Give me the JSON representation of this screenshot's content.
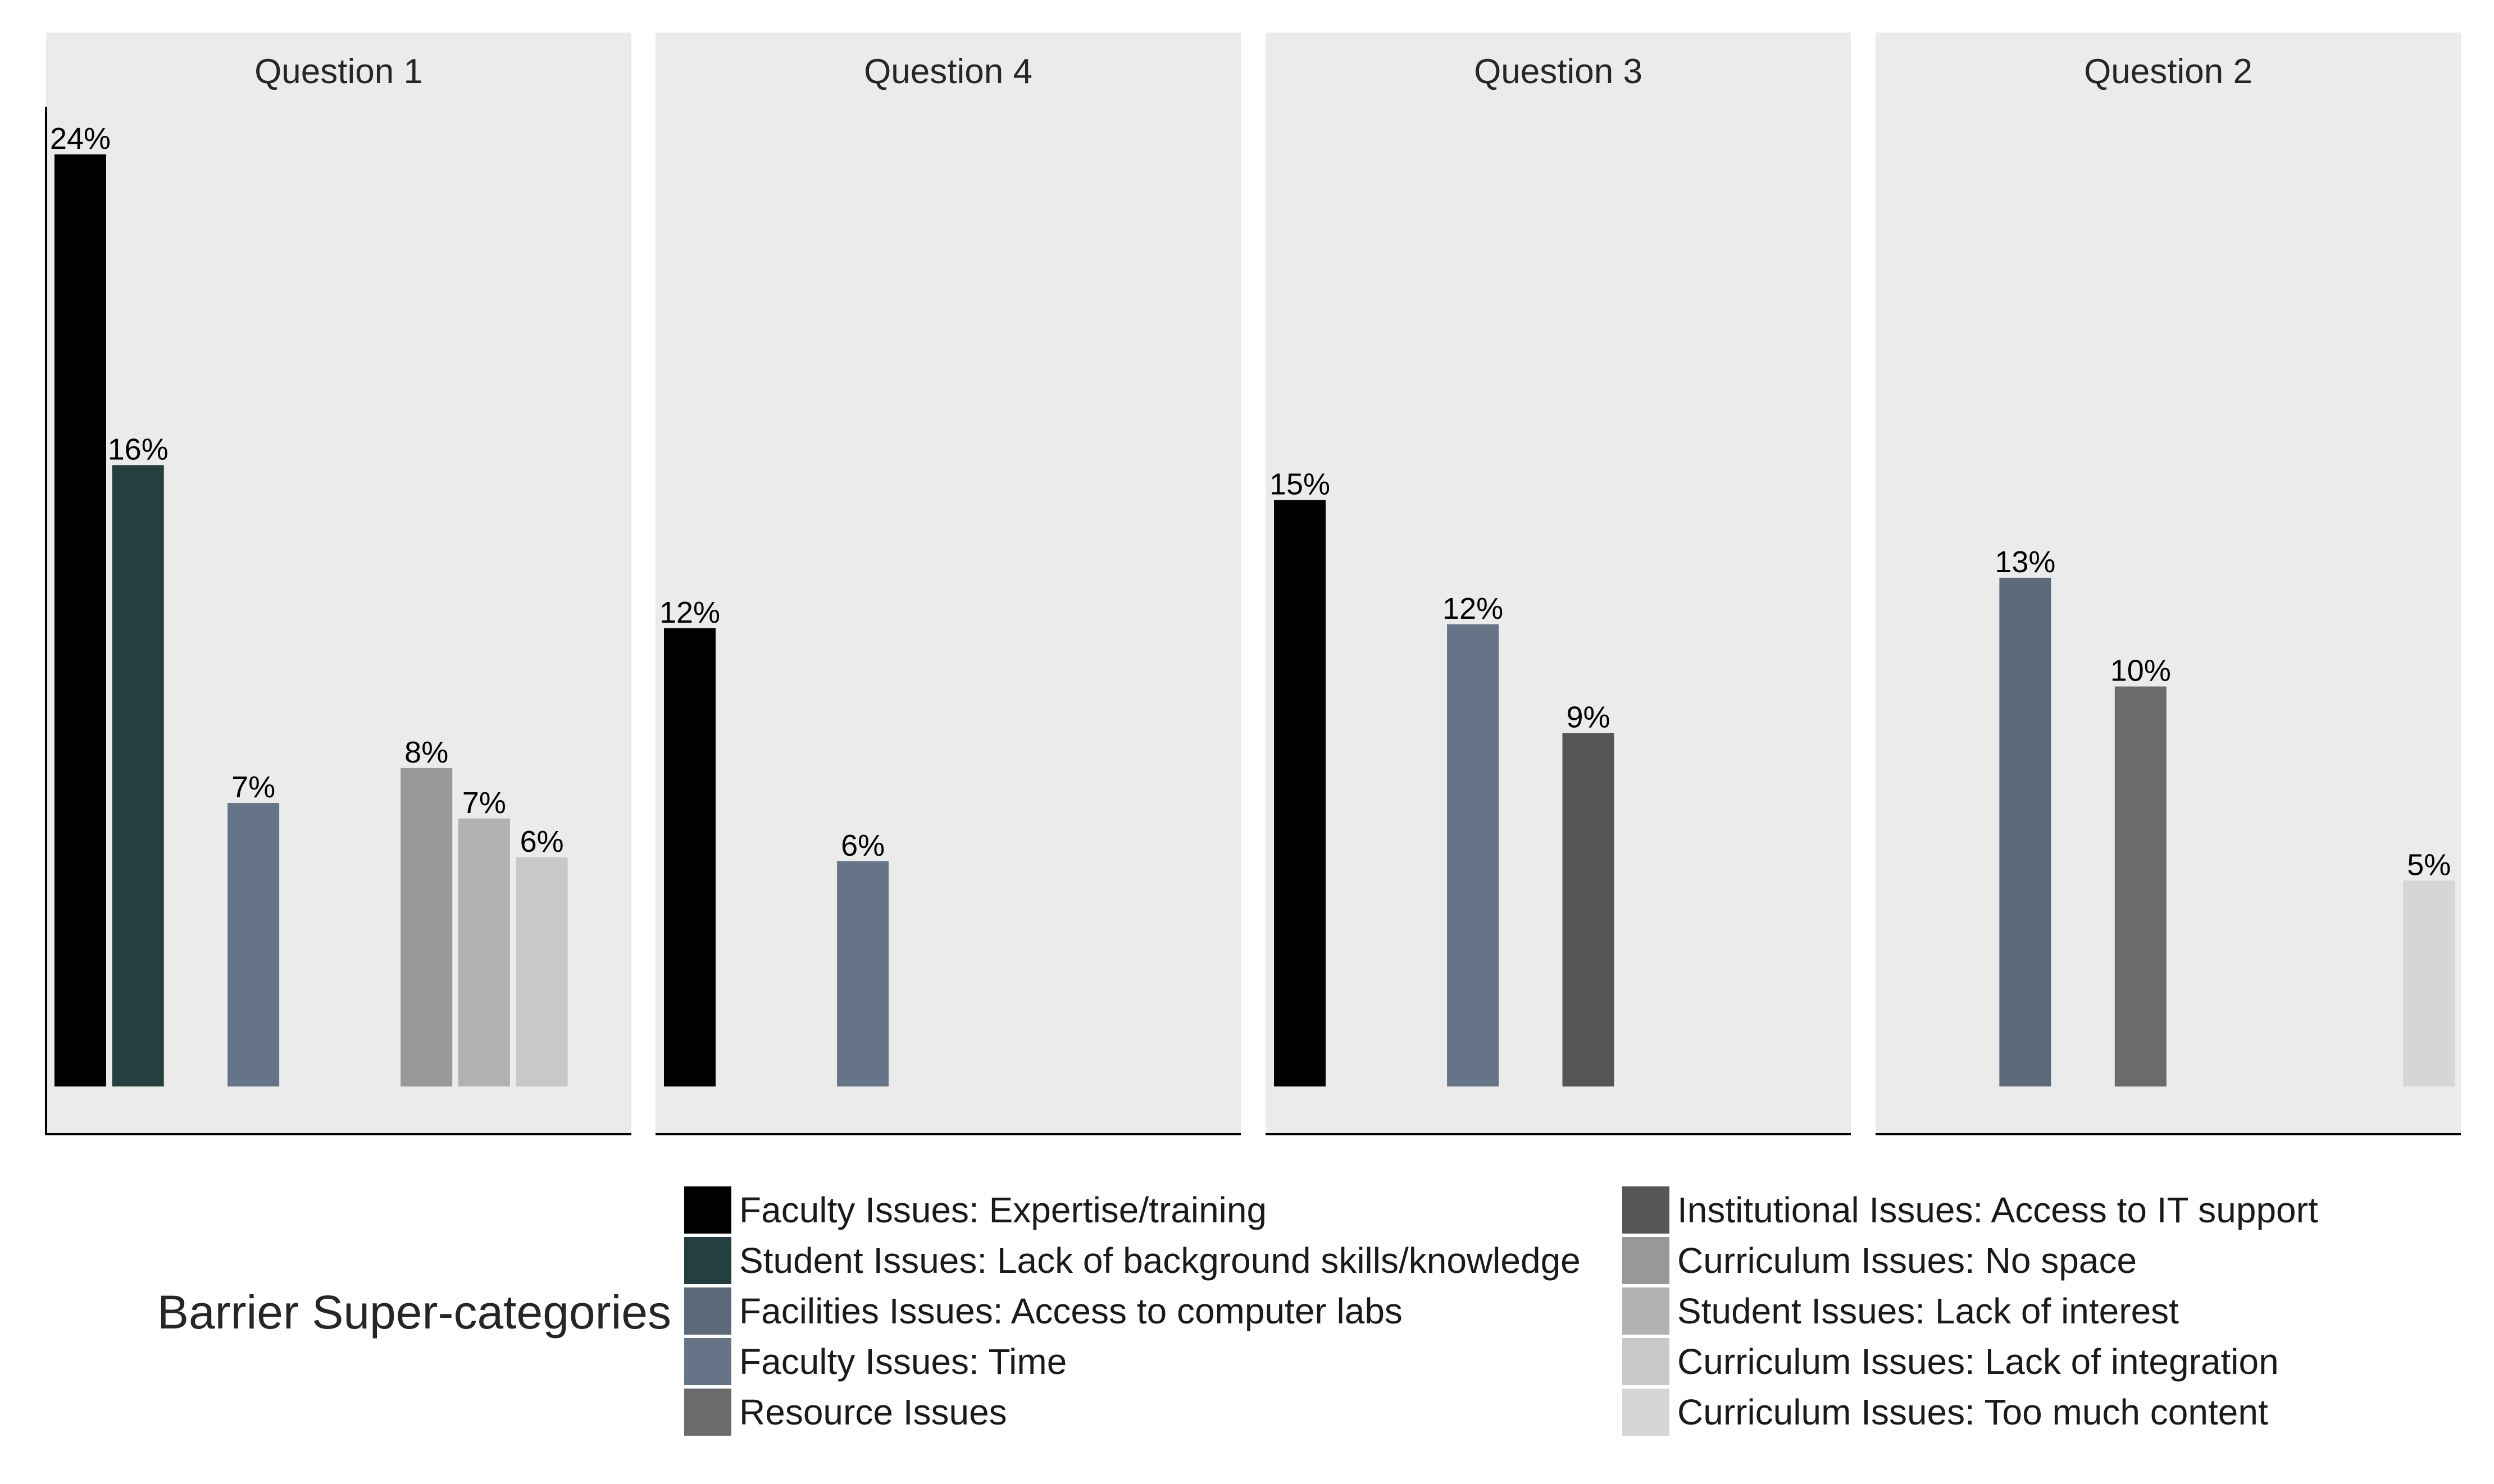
{
  "chart_data": {
    "type": "bar",
    "title": "",
    "xlabel": "",
    "ylabel": "",
    "ylim": [
      0,
      25
    ],
    "grid": false,
    "legend": {
      "title": "Barrier Super-categories",
      "position": "bottom"
    },
    "categories": [
      {
        "name": "Faculty Issues: Expertise/training",
        "color": "#000000"
      },
      {
        "name": "Student Issues: Lack of background skills/knowledge",
        "color": "#243f3f"
      },
      {
        "name": "Facilities Issues: Access to computer labs",
        "color": "#5c6a7a"
      },
      {
        "name": "Faculty Issues: Time",
        "color": "#657587"
      },
      {
        "name": "Resource Issues",
        "color": "#6b6b6b"
      },
      {
        "name": "Institutional Issues: Access to IT support",
        "color": "#555555"
      },
      {
        "name": "Curriculum Issues: No space",
        "color": "#989898"
      },
      {
        "name": "Student Issues: Lack of interest",
        "color": "#b2b2b2"
      },
      {
        "name": "Curriculum Issues: Lack of integration",
        "color": "#c8c8c8"
      },
      {
        "name": "Curriculum Issues: Too much content",
        "color": "#d6d6d6"
      }
    ],
    "panels": [
      {
        "title": "Question 1",
        "bars": [
          {
            "category": "Faculty Issues: Expertise/training",
            "slot": 0,
            "value": 24,
            "label": "24%"
          },
          {
            "category": "Student Issues: Lack of background skills/knowledge",
            "slot": 1,
            "value": 16,
            "label": "16%"
          },
          {
            "category": "Faculty Issues: Time",
            "slot": 3,
            "value": 7.3,
            "label": "7%"
          },
          {
            "category": "Curriculum Issues: No space",
            "slot": 6,
            "value": 8.2,
            "label": "8%"
          },
          {
            "category": "Student Issues: Lack of interest",
            "slot": 7,
            "value": 6.9,
            "label": "7%"
          },
          {
            "category": "Curriculum Issues: Lack of integration",
            "slot": 8,
            "value": 5.9,
            "label": "6%"
          }
        ]
      },
      {
        "title": "Question 4",
        "bars": [
          {
            "category": "Faculty Issues: Expertise/training",
            "slot": 0,
            "value": 11.8,
            "label": "12%"
          },
          {
            "category": "Faculty Issues: Time",
            "slot": 3,
            "value": 5.8,
            "label": "6%"
          }
        ]
      },
      {
        "title": "Question 3",
        "bars": [
          {
            "category": "Faculty Issues: Expertise/training",
            "slot": 0,
            "value": 15.1,
            "label": "15%"
          },
          {
            "category": "Faculty Issues: Time",
            "slot": 3,
            "value": 11.9,
            "label": "12%"
          },
          {
            "category": "Institutional Issues: Access to IT support",
            "slot": 5,
            "value": 9.1,
            "label": "9%"
          }
        ]
      },
      {
        "title": "Question 2",
        "bars": [
          {
            "category": "Facilities Issues: Access to computer labs",
            "slot": 2,
            "value": 13.1,
            "label": "13%"
          },
          {
            "category": "Resource Issues",
            "slot": 4,
            "value": 10.3,
            "label": "10%"
          },
          {
            "category": "Curriculum Issues: Too much content",
            "slot": 9,
            "value": 5.3,
            "label": "5%"
          }
        ]
      }
    ]
  }
}
